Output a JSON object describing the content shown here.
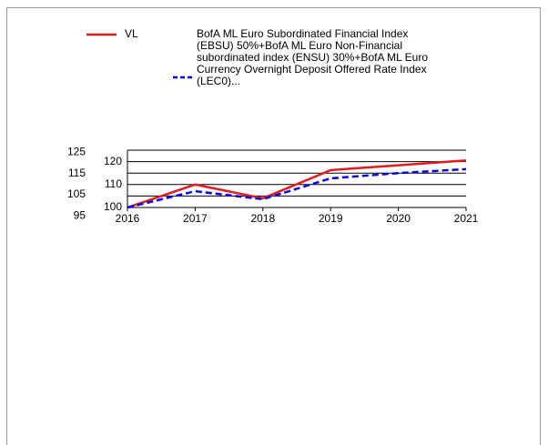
{
  "chart_data": {
    "type": "line",
    "x": [
      2016,
      2017,
      2018,
      2019,
      2020,
      2021
    ],
    "xlim": [
      2016,
      2021
    ],
    "xticks": [
      2016,
      2017,
      2018,
      2019,
      2020,
      2021
    ],
    "ylim": [
      100,
      125
    ],
    "yticks": [
      100,
      110,
      120
    ],
    "grid_values": [
      100,
      105,
      110,
      115,
      120,
      125
    ],
    "y2lim": [
      99,
      126
    ],
    "y2ticks": [
      95,
      105,
      115,
      125
    ],
    "grid": true,
    "series": [
      {
        "name": "VL",
        "color": "#e31a1c",
        "dash": false,
        "values": [
          100,
          110,
          104,
          116.3,
          118.4,
          120.5
        ]
      },
      {
        "name": "BofA ML Euro Subordinated Financial Index (EBSU) 50%+BofA ML Euro Non-Financial subordinated index (ENSU) 30%+BofA ML Euro Currency Overnight Deposit Offered Rate Index (LEC0)...",
        "color": "#0000ee",
        "dash": true,
        "values": [
          100,
          107.1,
          103.6,
          112.7,
          115,
          116.7
        ]
      }
    ]
  }
}
